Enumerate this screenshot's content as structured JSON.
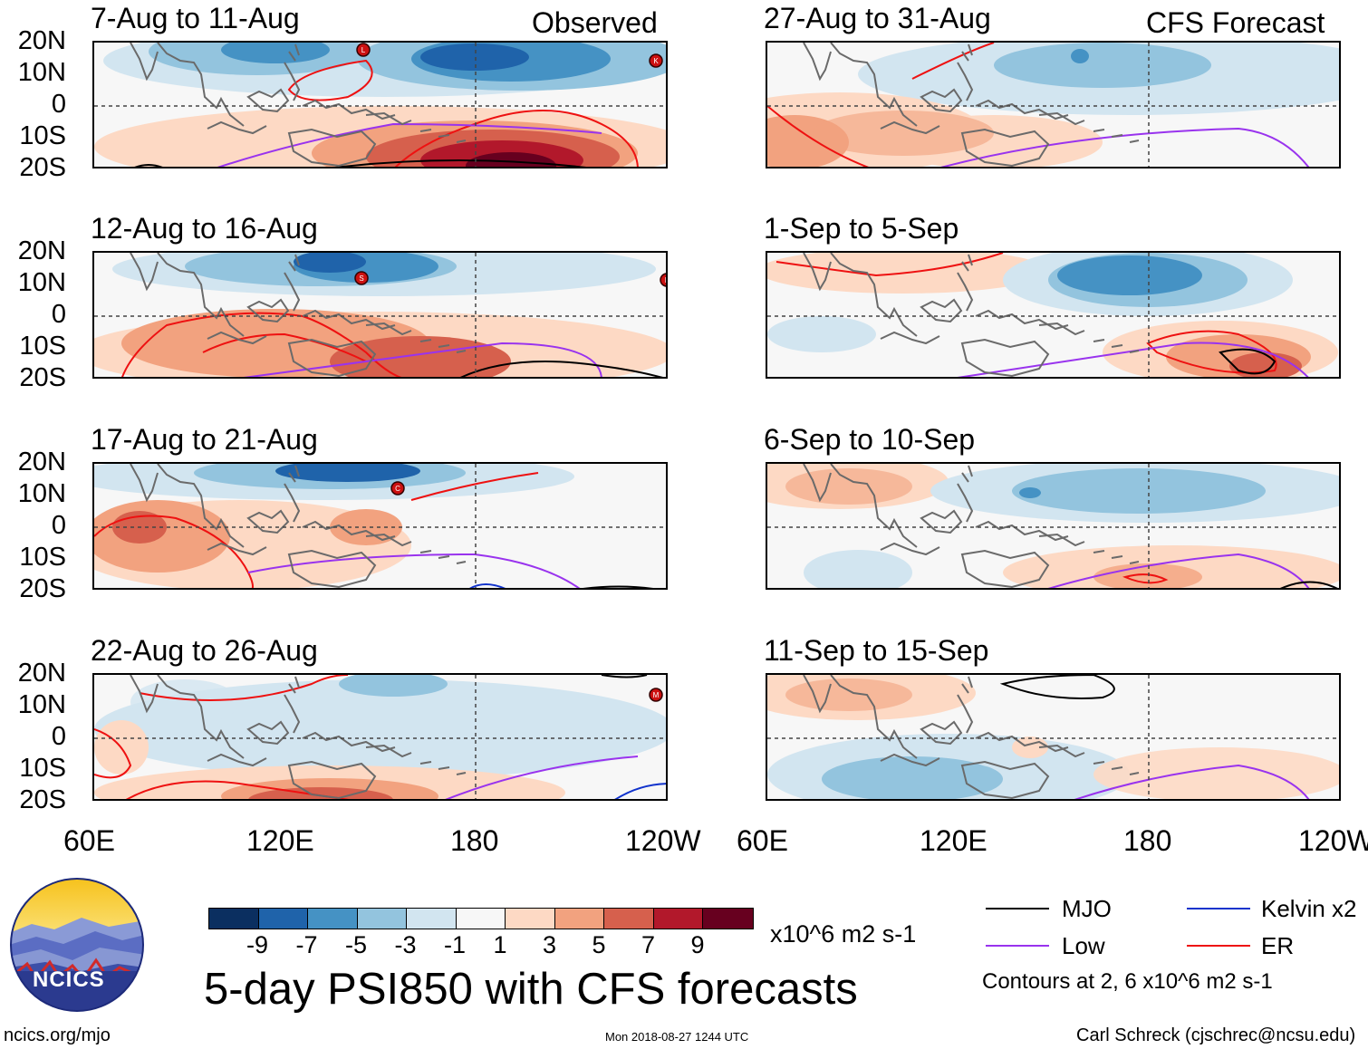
{
  "headers": {
    "left": "Observed",
    "right": "CFS Forecast"
  },
  "panels": [
    {
      "title": "7-Aug to 11-Aug"
    },
    {
      "title": "12-Aug to 16-Aug"
    },
    {
      "title": "17-Aug to 21-Aug"
    },
    {
      "title": "22-Aug to 26-Aug"
    },
    {
      "title": "27-Aug to 31-Aug"
    },
    {
      "title": "1-Sep to 5-Sep"
    },
    {
      "title": "6-Sep to 10-Sep"
    },
    {
      "title": "11-Sep to 15-Sep"
    }
  ],
  "lat_labels": [
    "20N",
    "10N",
    "0",
    "10S",
    "20S"
  ],
  "lon_labels": [
    "60E",
    "120E",
    "180",
    "120W"
  ],
  "storm_markers": [
    {
      "panel": 0,
      "letter": "L"
    },
    {
      "panel": 0,
      "letter": "K"
    },
    {
      "panel": 1,
      "letter": "S"
    },
    {
      "panel": 1,
      "letter": "L"
    },
    {
      "panel": 2,
      "letter": "C"
    },
    {
      "panel": 3,
      "letter": "M"
    }
  ],
  "colorbar": {
    "colors": [
      "#0b2f60",
      "#1f63aa",
      "#4592c4",
      "#93c4de",
      "#d2e5f0",
      "#f7f7f7",
      "#fdd9c4",
      "#f2a27f",
      "#d6604d",
      "#b2182b",
      "#67001f"
    ],
    "labels": [
      "-9",
      "-7",
      "-5",
      "-3",
      "-1",
      "1",
      "3",
      "5",
      "7",
      "9"
    ],
    "units": "x10^6 m2 s-1"
  },
  "main_title": "5-day PSI850 with CFS forecasts",
  "legend": {
    "items": [
      {
        "label": "MJO",
        "color": "#000000"
      },
      {
        "label": "Low",
        "color": "#9933ee"
      },
      {
        "label": "Kelvin x2",
        "color": "#1133cc"
      },
      {
        "label": "ER",
        "color": "#ee1111"
      }
    ],
    "contour_note": "Contours at 2, 6 x10^6 m2 s-1"
  },
  "footer": {
    "left": "ncics.org/mjo",
    "center": "Mon 2018-08-27 1244 UTC",
    "right": "Carl Schreck (cjschrec@ncsu.edu)"
  },
  "logo": {
    "text": "NCICS"
  }
}
